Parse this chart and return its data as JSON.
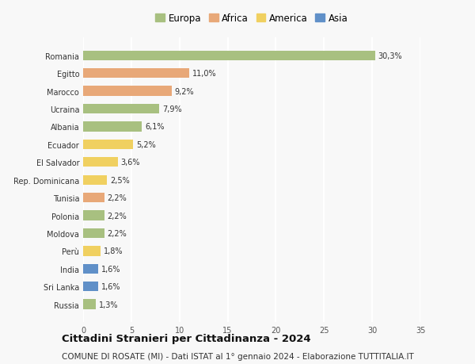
{
  "countries": [
    "Romania",
    "Egitto",
    "Marocco",
    "Ucraina",
    "Albania",
    "Ecuador",
    "El Salvador",
    "Rep. Dominicana",
    "Tunisia",
    "Polonia",
    "Moldova",
    "Perù",
    "India",
    "Sri Lanka",
    "Russia"
  ],
  "values": [
    30.3,
    11.0,
    9.2,
    7.9,
    6.1,
    5.2,
    3.6,
    2.5,
    2.2,
    2.2,
    2.2,
    1.8,
    1.6,
    1.6,
    1.3
  ],
  "labels": [
    "30,3%",
    "11,0%",
    "9,2%",
    "7,9%",
    "6,1%",
    "5,2%",
    "3,6%",
    "2,5%",
    "2,2%",
    "2,2%",
    "2,2%",
    "1,8%",
    "1,6%",
    "1,6%",
    "1,3%"
  ],
  "continents": [
    "Europa",
    "Africa",
    "Africa",
    "Europa",
    "Europa",
    "America",
    "America",
    "America",
    "Africa",
    "Europa",
    "Europa",
    "America",
    "Asia",
    "Asia",
    "Europa"
  ],
  "colors": {
    "Europa": "#a8c080",
    "Africa": "#e8a878",
    "America": "#f0d060",
    "Asia": "#6090c8"
  },
  "xlim": [
    0,
    35
  ],
  "xticks": [
    0,
    5,
    10,
    15,
    20,
    25,
    30,
    35
  ],
  "title": "Cittadini Stranieri per Cittadinanza - 2024",
  "subtitle": "COMUNE DI ROSATE (MI) - Dati ISTAT al 1° gennaio 2024 - Elaborazione TUTTITALIA.IT",
  "background_color": "#f8f8f8",
  "grid_color": "#ffffff",
  "bar_height": 0.55,
  "title_fontsize": 9.5,
  "subtitle_fontsize": 7.5,
  "label_fontsize": 7,
  "tick_fontsize": 7,
  "legend_fontsize": 8.5,
  "legend_order": [
    "Europa",
    "Africa",
    "America",
    "Asia"
  ]
}
